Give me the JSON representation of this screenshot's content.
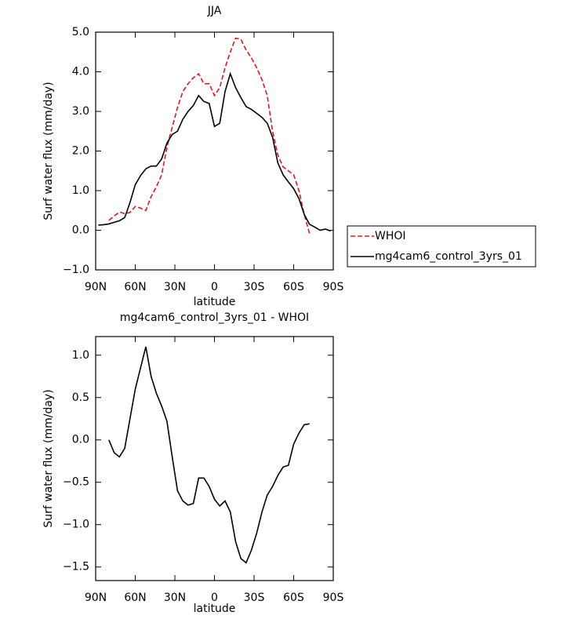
{
  "chart_data": [
    {
      "type": "line",
      "title": "JJA",
      "x_label": "latitude",
      "y_label": "Surf water flux (mm/day)",
      "x": [
        88,
        84,
        80,
        76,
        72,
        68,
        64,
        60,
        56,
        52,
        48,
        44,
        40,
        36,
        32,
        28,
        24,
        20,
        16,
        12,
        8,
        4,
        0,
        -4,
        -8,
        -12,
        -16,
        -20,
        -24,
        -28,
        -32,
        -36,
        -40,
        -44,
        -48,
        -52,
        -56,
        -60,
        -64,
        -68,
        -72,
        -76,
        -80,
        -84,
        -88
      ],
      "series": [
        {
          "name": "WHOI",
          "color": "#e8141c",
          "dash": true,
          "values": [
            null,
            null,
            0.25,
            0.36,
            0.46,
            0.42,
            0.45,
            0.6,
            0.56,
            0.5,
            0.85,
            1.1,
            1.4,
            2.1,
            2.6,
            3.1,
            3.5,
            3.7,
            3.85,
            3.95,
            3.7,
            3.7,
            3.4,
            3.6,
            4.1,
            4.5,
            4.85,
            4.82,
            4.55,
            4.35,
            4.1,
            3.8,
            3.4,
            2.5,
            1.9,
            1.6,
            1.5,
            1.4,
            1.0,
            0.4,
            -0.08,
            null,
            null,
            null,
            null
          ]
        },
        {
          "name": "mg4cam6_control_3yrs_01",
          "color": "#000000",
          "dash": false,
          "values": [
            0.13,
            0.14,
            0.16,
            0.2,
            0.24,
            0.32,
            0.7,
            1.15,
            1.38,
            1.55,
            1.62,
            1.62,
            1.8,
            2.2,
            2.42,
            2.5,
            2.8,
            3.0,
            3.15,
            3.4,
            3.25,
            3.2,
            2.62,
            2.7,
            3.5,
            3.95,
            3.6,
            3.35,
            3.12,
            3.05,
            2.95,
            2.85,
            2.7,
            2.35,
            1.7,
            1.4,
            1.22,
            1.05,
            0.8,
            0.4,
            0.15,
            0.08,
            0.0,
            0.03,
            -0.02
          ]
        }
      ],
      "xlim": [
        90,
        -90
      ],
      "xticks": [
        {
          "value": 90,
          "label": "90N"
        },
        {
          "value": 60,
          "label": "60N"
        },
        {
          "value": 30,
          "label": "30N"
        },
        0,
        {
          "value": -30,
          "label": "30S"
        },
        {
          "value": -60,
          "label": "60S"
        },
        {
          "value": -90,
          "label": "90S"
        }
      ],
      "ylim": [
        -1,
        5
      ],
      "yticks": [
        {
          "value": -1,
          "label": "−1.0"
        },
        {
          "value": 0,
          "label": "0.0"
        },
        {
          "value": 1,
          "label": "1.0"
        },
        {
          "value": 2,
          "label": "2.0"
        },
        {
          "value": 3,
          "label": "3.0"
        },
        {
          "value": 4,
          "label": "4.0"
        },
        {
          "value": 5,
          "label": "5.0"
        }
      ],
      "legend": "outside-right"
    },
    {
      "type": "line",
      "title": "mg4cam6_control_3yrs_01 - WHOI",
      "x_label": "latitude",
      "y_label": "Surf water flux (mm/day)",
      "x": [
        88,
        84,
        80,
        76,
        72,
        68,
        64,
        60,
        56,
        52,
        48,
        44,
        40,
        36,
        32,
        28,
        24,
        20,
        16,
        12,
        8,
        4,
        0,
        -4,
        -8,
        -12,
        -16,
        -20,
        -24,
        -28,
        -32,
        -36,
        -40,
        -44,
        -48,
        -52,
        -56,
        -60,
        -64,
        -68,
        -72,
        -76,
        -80,
        -84,
        -88
      ],
      "series": [
        {
          "color": "#000000",
          "dash": false,
          "values": [
            null,
            null,
            0.0,
            -0.15,
            -0.2,
            -0.1,
            0.25,
            0.6,
            0.85,
            1.1,
            0.75,
            0.55,
            0.4,
            0.22,
            -0.2,
            -0.6,
            -0.72,
            -0.77,
            -0.75,
            -0.45,
            -0.45,
            -0.55,
            -0.7,
            -0.78,
            -0.72,
            -0.85,
            -1.2,
            -1.4,
            -1.45,
            -1.3,
            -1.1,
            -0.85,
            -0.65,
            -0.55,
            -0.42,
            -0.32,
            -0.3,
            -0.05,
            0.08,
            0.18,
            0.19,
            null,
            null,
            null,
            null
          ]
        }
      ],
      "xlim": [
        90,
        -90
      ],
      "xticks": [
        {
          "value": 90,
          "label": "90N"
        },
        {
          "value": 60,
          "label": "60N"
        },
        {
          "value": 30,
          "label": "30N"
        },
        0,
        {
          "value": -30,
          "label": "30S"
        },
        {
          "value": -60,
          "label": "60S"
        },
        {
          "value": -90,
          "label": "90S"
        }
      ],
      "ylim": [
        -1.66,
        1.22
      ],
      "yticks": [
        {
          "value": -1.5,
          "label": "−1.5"
        },
        {
          "value": -1,
          "label": "−1.0"
        },
        {
          "value": -0.5,
          "label": "−0.5"
        },
        {
          "value": 0,
          "label": "0.0"
        },
        {
          "value": 0.5,
          "label": "0.5"
        },
        {
          "value": 1,
          "label": "1.0"
        }
      ]
    }
  ]
}
